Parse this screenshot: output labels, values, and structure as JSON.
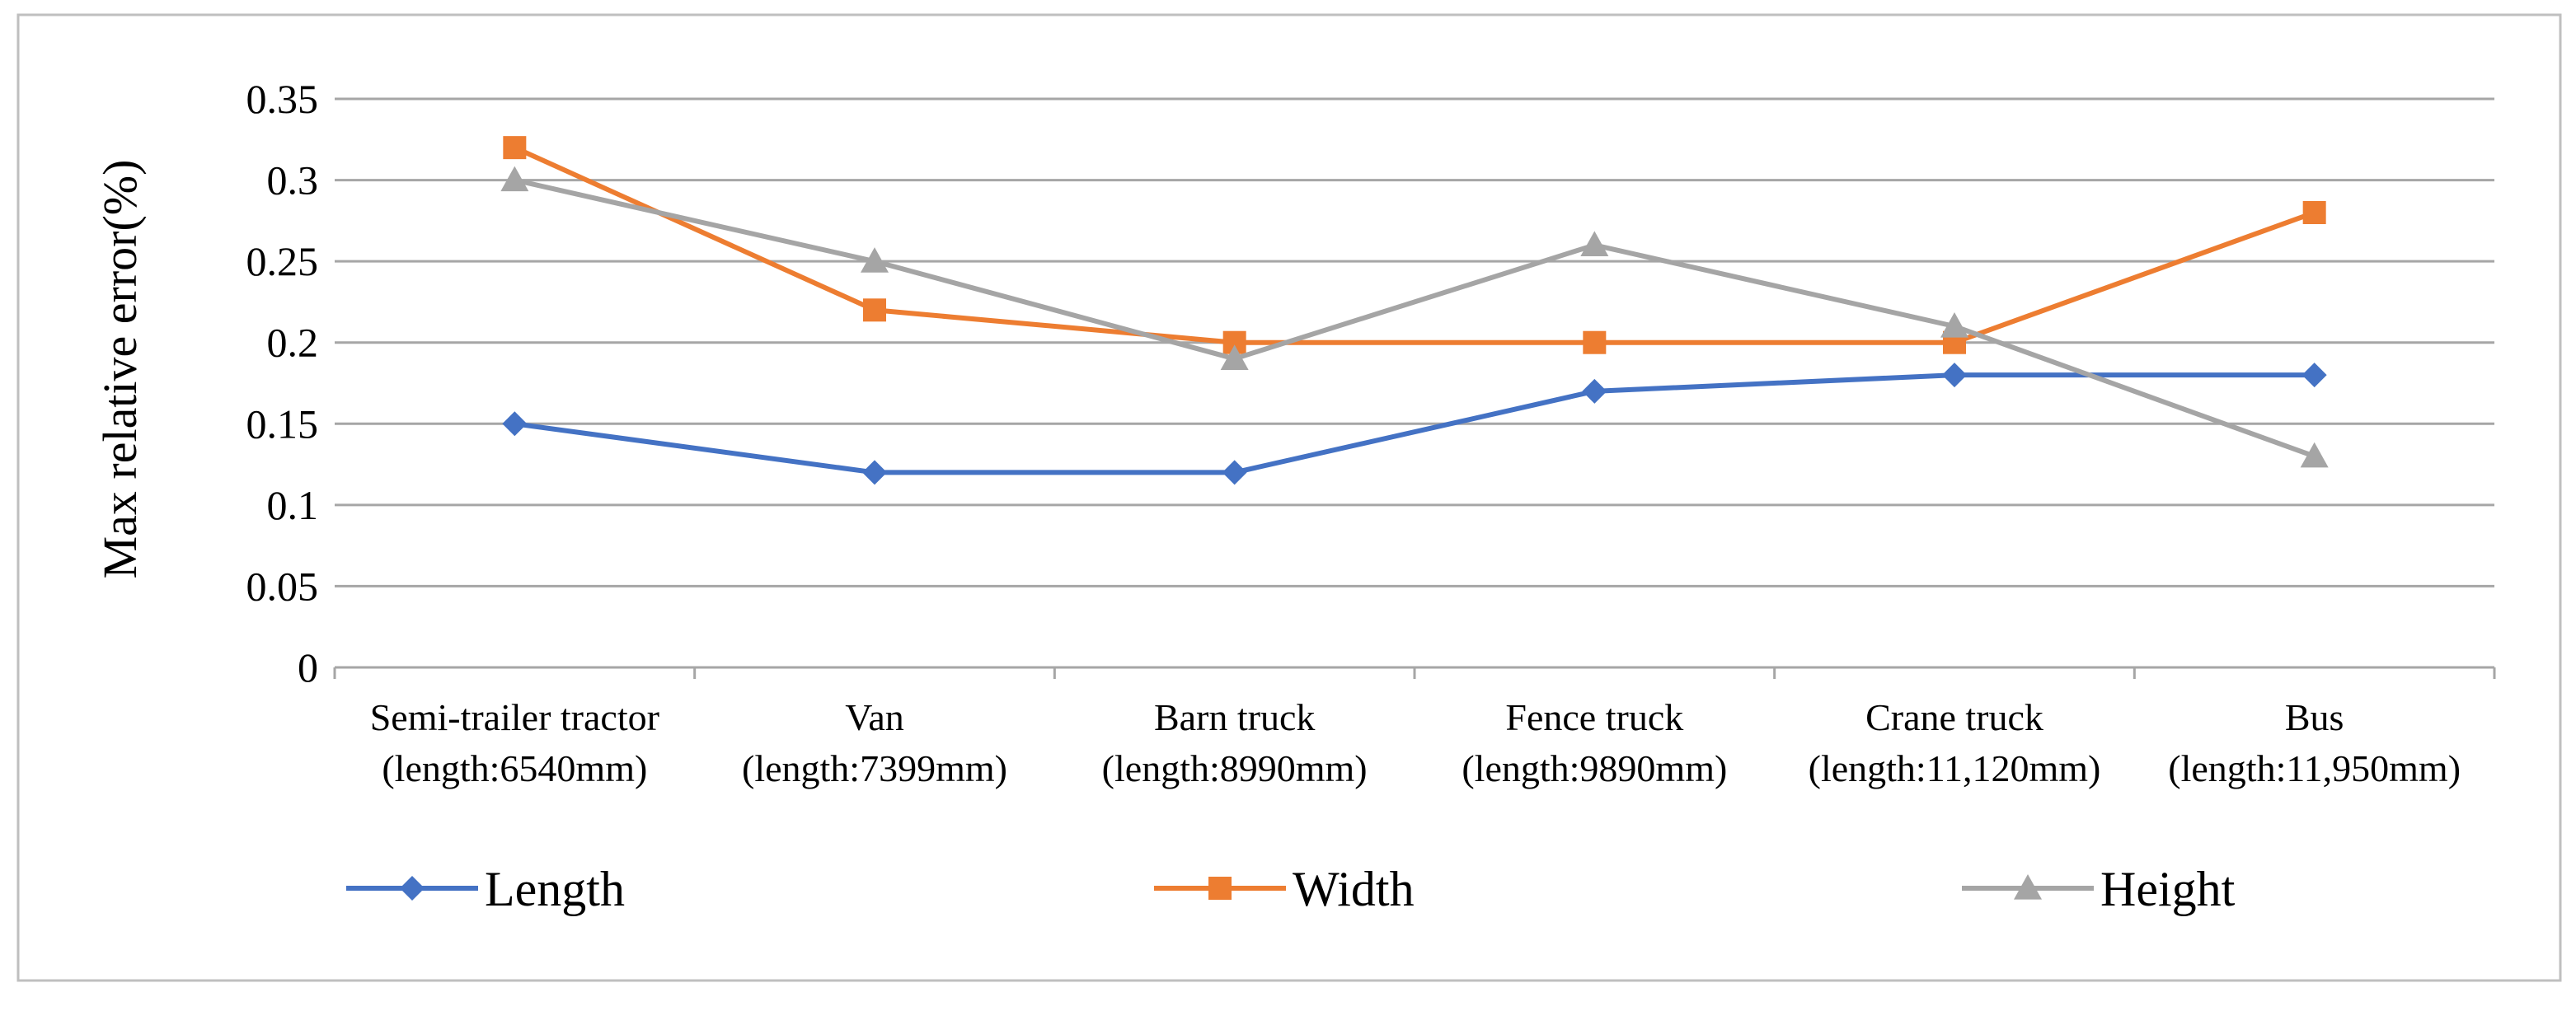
{
  "chart_data": {
    "type": "line",
    "title": "",
    "xlabel": "",
    "ylabel": "Max relative  error(%)",
    "ylim": [
      0,
      0.35
    ],
    "ytick_step": 0.05,
    "yticks": [
      "0",
      "0.05",
      "0.1",
      "0.15",
      "0.2",
      "0.25",
      "0.3",
      "0.35"
    ],
    "grid": true,
    "legend_position": "bottom",
    "categories": [
      {
        "name": "Semi-trailer tractor",
        "detail": "(length:6540mm)"
      },
      {
        "name": "Van",
        "detail": "(length:7399mm)"
      },
      {
        "name": "Barn truck",
        "detail": "(length:8990mm)"
      },
      {
        "name": "Fence truck",
        "detail": "(length:9890mm)"
      },
      {
        "name": "Crane truck",
        "detail": "(length:11,120mm)"
      },
      {
        "name": "Bus",
        "detail": "(length:11,950mm)"
      }
    ],
    "series": [
      {
        "name": "Length",
        "marker": "diamond",
        "color": "#4472C4",
        "values": [
          0.15,
          0.12,
          0.12,
          0.17,
          0.18,
          0.18
        ]
      },
      {
        "name": "Width",
        "marker": "square",
        "color": "#ED7D31",
        "values": [
          0.32,
          0.22,
          0.2,
          0.2,
          0.2,
          0.28
        ]
      },
      {
        "name": "Height",
        "marker": "triangle",
        "color": "#A5A5A5",
        "values": [
          0.3,
          0.25,
          0.19,
          0.26,
          0.21,
          0.13
        ]
      }
    ],
    "colors": {
      "grid": "#A6A6A6",
      "axis": "#A6A6A6",
      "border": "#BFBFBF"
    }
  }
}
